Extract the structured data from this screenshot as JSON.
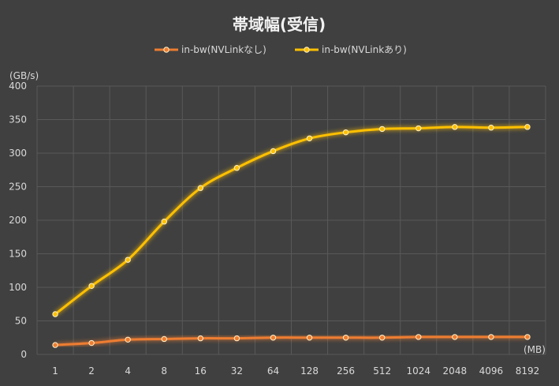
{
  "chart_data": {
    "type": "line",
    "title": "帯域幅(受信)",
    "ylabel": "(GB/s)",
    "xlabel": "(MB)",
    "categories": [
      "1",
      "2",
      "4",
      "8",
      "16",
      "32",
      "64",
      "128",
      "256",
      "512",
      "1024",
      "2048",
      "4096",
      "8192"
    ],
    "ylim": [
      0,
      400
    ],
    "yticks": [
      0,
      50,
      100,
      150,
      200,
      250,
      300,
      350,
      400
    ],
    "grid": true,
    "legend_position": "top-center",
    "series": [
      {
        "name": "in-bw(NVLinkなし)",
        "color": "#ed7d31",
        "values": [
          14,
          17,
          22,
          23,
          24,
          24,
          25,
          25,
          25,
          25,
          26,
          26,
          26,
          26
        ]
      },
      {
        "name": "in-bw(NVLinkあり)",
        "color": "#ffc000",
        "values": [
          60,
          102,
          141,
          198,
          248,
          278,
          303,
          322,
          331,
          336,
          337,
          339,
          338,
          339
        ]
      }
    ]
  }
}
